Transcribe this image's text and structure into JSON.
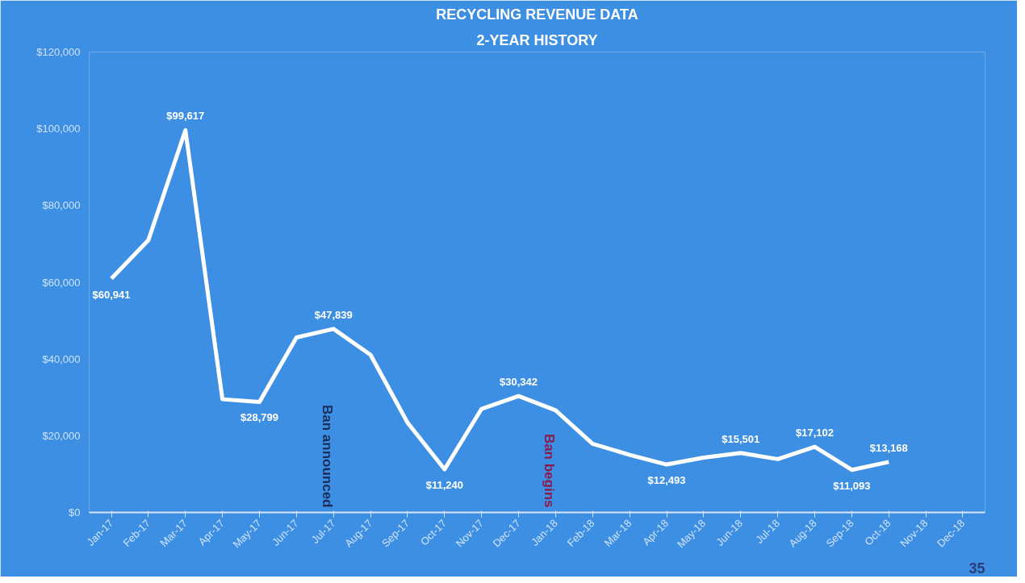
{
  "chart_data": {
    "type": "line",
    "title": "RECYCLING REVENUE DATA",
    "subtitle": "2-YEAR HISTORY",
    "categories": [
      "Jan-17",
      "Feb-17",
      "Mar-17",
      "Apr-17",
      "May-17",
      "Jun-17",
      "Jul-17",
      "Aug-17",
      "Sep-17",
      "Oct-17",
      "Nov-17",
      "Dec-17",
      "Jan-18",
      "Feb-18",
      "Mar-18",
      "Apr-18",
      "May-18",
      "Jun-18",
      "Jul-18",
      "Aug-18",
      "Sep-18",
      "Oct-18",
      "Nov-18",
      "Dec-18"
    ],
    "series": [
      {
        "color": "#ffffff",
        "values": [
          60941,
          71000,
          99617,
          29500,
          28799,
          45600,
          47839,
          41100,
          23400,
          11240,
          27000,
          30342,
          26600,
          17900,
          15000,
          12493,
          14300,
          15501,
          13900,
          17102,
          11093,
          13168,
          null,
          null
        ],
        "value_labels": [
          "$60,941",
          null,
          "$99,617",
          null,
          "$28,799",
          null,
          "$47,839",
          null,
          null,
          "$11,240",
          null,
          "$30,342",
          null,
          null,
          null,
          "$12,493",
          null,
          "$15,501",
          null,
          "$17,102",
          "$11,093",
          "$13,168",
          null,
          null
        ]
      }
    ],
    "ylim": [
      0,
      120000
    ],
    "yticks": [
      {
        "value": 0,
        "label": "$0"
      },
      {
        "value": 20000,
        "label": "$20,000"
      },
      {
        "value": 40000,
        "label": "$40,000"
      },
      {
        "value": 60000,
        "label": "$60,000"
      },
      {
        "value": 80000,
        "label": "$80,000"
      },
      {
        "value": 100000,
        "label": "$100,000"
      },
      {
        "value": 120000,
        "label": "$120,000"
      }
    ],
    "marker": "none",
    "line_style": "solid",
    "annotations": [
      "Ban announced",
      "Ban begins",
      "35"
    ]
  }
}
